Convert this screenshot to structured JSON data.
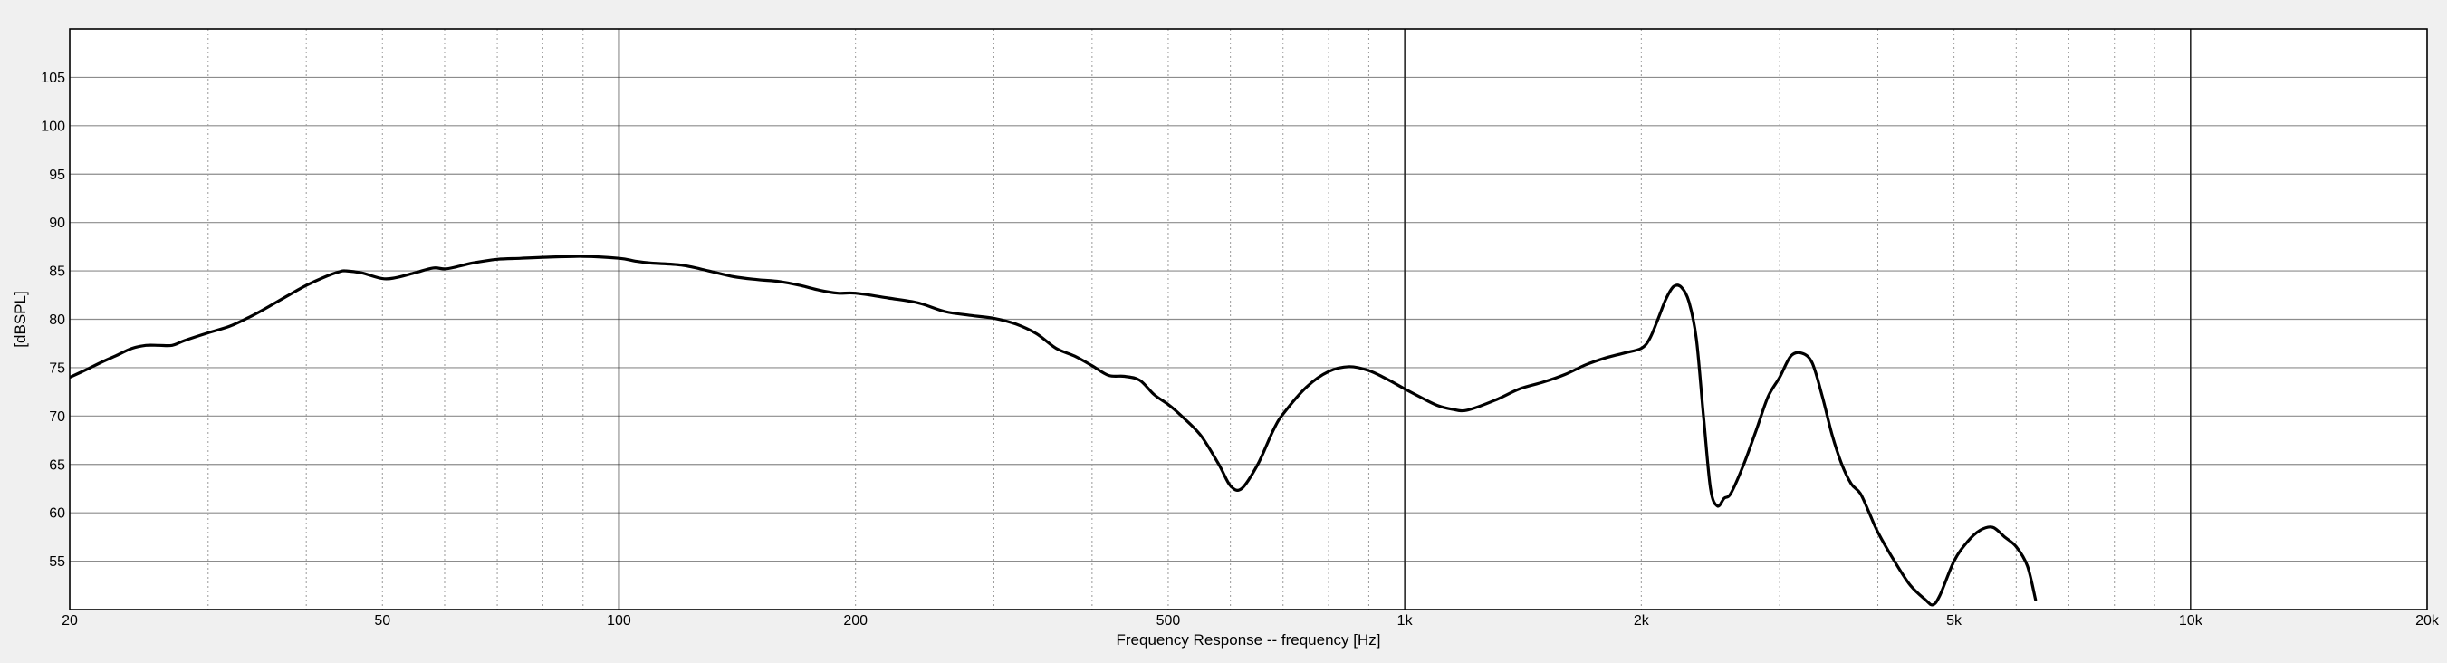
{
  "chart_data": {
    "type": "line",
    "title": "",
    "xlabel": "Frequency Response -- frequency [Hz]",
    "ylabel": "[dBSPL]",
    "xscale": "log",
    "xlim": [
      20,
      20000
    ],
    "ylim": [
      50,
      110
    ],
    "grid": true,
    "legend": "none",
    "x_ticks": [
      {
        "value": 20,
        "label": "20"
      },
      {
        "value": 50,
        "label": "50"
      },
      {
        "value": 100,
        "label": "100"
      },
      {
        "value": 200,
        "label": "200"
      },
      {
        "value": 500,
        "label": "500"
      },
      {
        "value": 1000,
        "label": "1k"
      },
      {
        "value": 2000,
        "label": "2k"
      },
      {
        "value": 5000,
        "label": "5k"
      },
      {
        "value": 10000,
        "label": "10k"
      },
      {
        "value": 20000,
        "label": "20k"
      }
    ],
    "y_ticks": [
      {
        "value": 55,
        "label": "55"
      },
      {
        "value": 60,
        "label": "60"
      },
      {
        "value": 65,
        "label": "65"
      },
      {
        "value": 70,
        "label": "70"
      },
      {
        "value": 75,
        "label": "75"
      },
      {
        "value": 80,
        "label": "80"
      },
      {
        "value": 85,
        "label": "85"
      },
      {
        "value": 90,
        "label": "90"
      },
      {
        "value": 95,
        "label": "95"
      },
      {
        "value": 100,
        "label": "100"
      },
      {
        "value": 105,
        "label": "105"
      }
    ],
    "minor_x_gridlines": [
      30,
      40,
      60,
      70,
      80,
      90,
      300,
      400,
      600,
      700,
      800,
      900,
      3000,
      4000,
      6000,
      7000,
      8000,
      9000
    ],
    "major_x_gridlines": [
      100,
      1000,
      10000
    ],
    "series": [
      {
        "color": "#000000",
        "x": [
          20,
          21,
          22,
          23,
          24,
          25,
          26,
          27,
          28,
          30,
          32,
          34,
          36,
          38,
          40,
          42,
          44,
          45,
          47,
          50,
          52,
          55,
          58,
          60,
          62,
          65,
          70,
          75,
          80,
          90,
          100,
          105,
          110,
          120,
          130,
          140,
          150,
          160,
          170,
          180,
          190,
          200,
          220,
          240,
          260,
          280,
          300,
          320,
          340,
          360,
          380,
          400,
          420,
          440,
          460,
          480,
          500,
          520,
          550,
          580,
          600,
          620,
          650,
          680,
          700,
          750,
          800,
          850,
          900,
          950,
          1000,
          1050,
          1100,
          1150,
          1200,
          1300,
          1400,
          1500,
          1600,
          1700,
          1800,
          1900,
          2000,
          2050,
          2100,
          2150,
          2200,
          2250,
          2300,
          2350,
          2400,
          2450,
          2500,
          2550,
          2600,
          2700,
          2800,
          2900,
          3000,
          3100,
          3200,
          3300,
          3400,
          3500,
          3600,
          3700,
          3800,
          3900,
          4000,
          4200,
          4400,
          4600,
          4700,
          4800,
          5000,
          5200,
          5400,
          5600,
          5800,
          6000,
          6200,
          6350
        ],
        "y": [
          74,
          74.8,
          75.6,
          76.3,
          77,
          77.3,
          77.3,
          77.3,
          77.8,
          78.6,
          79.3,
          80.3,
          81.4,
          82.5,
          83.5,
          84.3,
          84.9,
          85,
          84.8,
          84.2,
          84.3,
          84.8,
          85.3,
          85.2,
          85.4,
          85.8,
          86.2,
          86.3,
          86.4,
          86.5,
          86.3,
          86,
          85.8,
          85.6,
          85,
          84.4,
          84.1,
          83.9,
          83.5,
          83,
          82.7,
          82.7,
          82.2,
          81.7,
          80.8,
          80.4,
          80.1,
          79.5,
          78.5,
          77,
          76.2,
          75.2,
          74.2,
          74.1,
          73.7,
          72.2,
          71.2,
          70,
          68,
          65,
          62.8,
          62.5,
          65,
          68.5,
          70.2,
          73,
          74.6,
          75.1,
          74.7,
          73.8,
          72.8,
          71.9,
          71.1,
          70.7,
          70.6,
          71.6,
          72.8,
          73.5,
          74.3,
          75.3,
          76,
          76.5,
          77,
          78,
          80,
          82.1,
          83.4,
          83.3,
          81.8,
          78,
          70,
          62.5,
          60.7,
          61.5,
          62,
          65,
          68.5,
          72,
          74,
          76.2,
          76.5,
          75.5,
          72,
          68,
          65,
          63,
          62,
          60,
          58,
          55,
          52.5,
          51,
          50.5,
          51.5,
          55,
          57,
          58.2,
          58.5,
          57.5,
          56.5,
          54.5,
          51
        ]
      }
    ]
  }
}
